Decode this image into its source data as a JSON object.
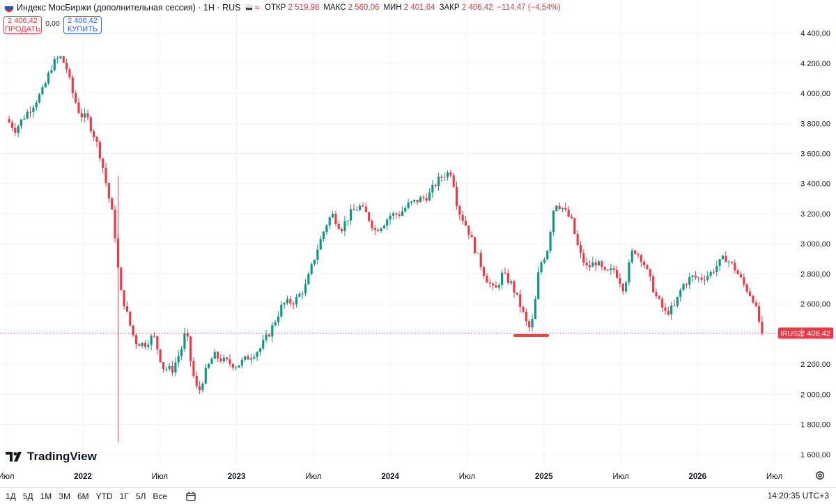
{
  "header": {
    "title": "Индекс МосБиржи (дополнительная сессия) · 1H · RUS",
    "ohlc": [
      {
        "key": "ОТКР",
        "value": "2 519,98"
      },
      {
        "key": "МАКС",
        "value": "2 560,06"
      },
      {
        "key": "МИН",
        "value": "2 401,64"
      },
      {
        "key": "ЗАКР",
        "value": "2 406,42"
      }
    ],
    "change": "−114,47 (−4,54%)"
  },
  "trade": {
    "sell_price": "2 406,42",
    "sell_label": "ПРОДАТЬ",
    "spread": "0,00",
    "buy_price": "2 406,42",
    "buy_label": "КУПИТЬ"
  },
  "colors": {
    "up": "#089981",
    "down": "#f23645",
    "grid": "#f0f3fa",
    "text": "#131722",
    "accent": "#2962ff"
  },
  "chart_data": {
    "type": "candlestick",
    "title": "Индекс МосБиржи (дополнительная сессия)",
    "ylim": [
      1530,
      4620
    ],
    "y_ticks": [
      "4 400,00",
      "4 200,00",
      "4 000,00",
      "3 800,00",
      "3 600,00",
      "3 400,00",
      "3 200,00",
      "3 000,00",
      "2 800,00",
      "2 600,00",
      "2 400,00",
      "2 200,00",
      "2 000,00",
      "1 800,00",
      "1 600,00"
    ],
    "y_tick_values": [
      4400,
      4200,
      4000,
      3800,
      3600,
      3400,
      3200,
      3000,
      2800,
      2600,
      2400,
      2200,
      2000,
      1800,
      1600
    ],
    "x_ticks": [
      "Июл",
      "2022",
      "Июл",
      "2023",
      "Июл",
      "2024",
      "Июл",
      "2025",
      "Июл",
      "2026",
      "Июл"
    ],
    "last_price": {
      "symbol": "IRUS2",
      "value": 2406.42,
      "label": "2 406,42"
    },
    "close_path": [
      [
        2021.5,
        3830
      ],
      [
        2021.56,
        3760
      ],
      [
        2021.62,
        3850
      ],
      [
        2021.68,
        3930
      ],
      [
        2021.74,
        4020
      ],
      [
        2021.8,
        4190
      ],
      [
        2021.85,
        4245
      ],
      [
        2021.89,
        4180
      ],
      [
        2021.93,
        4010
      ],
      [
        2021.98,
        3860
      ],
      [
        2022.03,
        3830
      ],
      [
        2022.08,
        3700
      ],
      [
        2022.12,
        3560
      ],
      [
        2022.16,
        3350
      ],
      [
        2022.2,
        3150
      ],
      [
        2022.24,
        2700
      ],
      [
        2022.27,
        2600
      ],
      [
        2022.3,
        2480
      ],
      [
        2022.34,
        2350
      ],
      [
        2022.4,
        2330
      ],
      [
        2022.46,
        2390
      ],
      [
        2022.52,
        2180
      ],
      [
        2022.58,
        2160
      ],
      [
        2022.64,
        2300
      ],
      [
        2022.67,
        2430
      ],
      [
        2022.71,
        2160
      ],
      [
        2022.75,
        2000
      ],
      [
        2022.79,
        2130
      ],
      [
        2022.85,
        2260
      ],
      [
        2022.92,
        2220
      ],
      [
        2023.0,
        2190
      ],
      [
        2023.08,
        2250
      ],
      [
        2023.15,
        2300
      ],
      [
        2023.22,
        2420
      ],
      [
        2023.3,
        2600
      ],
      [
        2023.38,
        2620
      ],
      [
        2023.45,
        2720
      ],
      [
        2023.52,
        2950
      ],
      [
        2023.58,
        3120
      ],
      [
        2023.62,
        3200
      ],
      [
        2023.68,
        3100
      ],
      [
        2023.74,
        3200
      ],
      [
        2023.8,
        3250
      ],
      [
        2023.85,
        3190
      ],
      [
        2023.9,
        3090
      ],
      [
        2023.95,
        3130
      ],
      [
        2024.0,
        3190
      ],
      [
        2024.06,
        3200
      ],
      [
        2024.12,
        3260
      ],
      [
        2024.18,
        3290
      ],
      [
        2024.25,
        3320
      ],
      [
        2024.3,
        3410
      ],
      [
        2024.35,
        3460
      ],
      [
        2024.4,
        3480
      ],
      [
        2024.44,
        3230
      ],
      [
        2024.5,
        3110
      ],
      [
        2024.56,
        2940
      ],
      [
        2024.62,
        2780
      ],
      [
        2024.68,
        2680
      ],
      [
        2024.73,
        2800
      ],
      [
        2024.79,
        2730
      ],
      [
        2024.85,
        2580
      ],
      [
        2024.9,
        2430
      ],
      [
        2024.93,
        2500
      ],
      [
        2024.97,
        2850
      ],
      [
        2025.02,
        2950
      ],
      [
        2025.07,
        3280
      ],
      [
        2025.12,
        3240
      ],
      [
        2025.18,
        3150
      ],
      [
        2025.23,
        2940
      ],
      [
        2025.28,
        2840
      ],
      [
        2025.34,
        2880
      ],
      [
        2025.4,
        2800
      ],
      [
        2025.46,
        2830
      ],
      [
        2025.52,
        2700
      ],
      [
        2025.58,
        2970
      ],
      [
        2025.64,
        2900
      ],
      [
        2025.68,
        2790
      ],
      [
        2025.73,
        2650
      ],
      [
        2025.79,
        2540
      ],
      [
        2025.85,
        2580
      ],
      [
        2025.9,
        2720
      ],
      [
        2025.96,
        2780
      ],
      [
        2026.02,
        2770
      ],
      [
        2026.08,
        2800
      ],
      [
        2026.13,
        2860
      ],
      [
        2026.18,
        2910
      ],
      [
        2026.24,
        2840
      ],
      [
        2026.3,
        2730
      ],
      [
        2026.36,
        2640
      ],
      [
        2026.42,
        2406
      ]
    ]
  },
  "bottom": {
    "ranges": [
      "1Д",
      "5Д",
      "1М",
      "3М",
      "6М",
      "YTD",
      "1Г",
      "5Л",
      "Все"
    ],
    "time": "14:20:35 UTC+3"
  },
  "brand": "TradingView"
}
